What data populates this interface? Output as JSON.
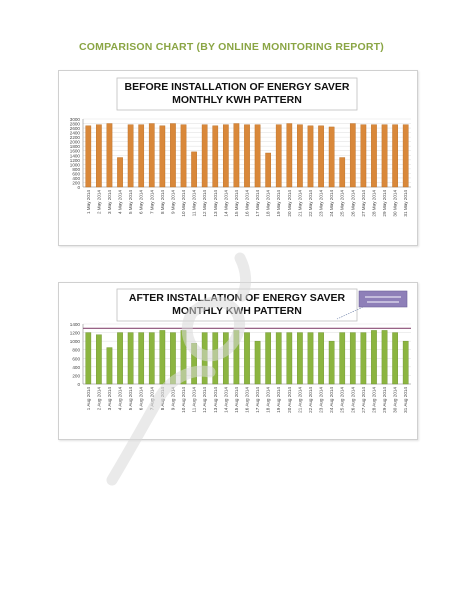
{
  "page": {
    "heading": "COMPARISON CHART  (BY ONLINE MONITORING REPORT)",
    "heading_color": "#8aa544"
  },
  "chart_data": [
    {
      "type": "bar",
      "title": "BEFORE INSTALLATION  OF ENERGY SAVER",
      "subtitle": "MONTHLY KWH PATTERN",
      "bar_color": "#d9883a",
      "bar_edge_color": "#b76b22",
      "grid": true,
      "ylim": [
        0,
        3000
      ],
      "yticks": [
        "0",
        "200",
        "400",
        "600",
        "800",
        "1000",
        "1200",
        "1400",
        "1600",
        "1800",
        "2000",
        "2200",
        "2400",
        "2600",
        "2800",
        "3000"
      ],
      "categories": [
        "1 May 2014",
        "2 May 2014",
        "3 May 2014",
        "4 May 2014",
        "5 May 2014",
        "6 May 2014",
        "7 May 2014",
        "8 May 2014",
        "9 May 2014",
        "10 May 2014",
        "11 May 2014",
        "12 May 2014",
        "13 May 2014",
        "14 May 2014",
        "15 May 2014",
        "16 May 2014",
        "17 May 2014",
        "18 May 2014",
        "19 May 2014",
        "20 May 2014",
        "21 May 2014",
        "22 May 2014",
        "23 May 2014",
        "24 May 2014",
        "25 May 2014",
        "26 May 2014",
        "27 May 2014",
        "28 May 2014",
        "29 May 2014",
        "30 May 2014",
        "31 May 2014"
      ],
      "values": [
        2700,
        2750,
        2800,
        1300,
        2750,
        2750,
        2800,
        2700,
        2800,
        2750,
        1550,
        2750,
        2700,
        2750,
        2800,
        2750,
        2750,
        1500,
        2750,
        2800,
        2750,
        2700,
        2700,
        2650,
        1300,
        2800,
        2750,
        2750,
        2750,
        2750,
        2750
      ]
    },
    {
      "type": "bar",
      "title": "AFTER  INSTALLATION  OF ENERGY SAVER",
      "subtitle": "MONTHLY KWH PATTERN",
      "bar_color": "#8cb540",
      "bar_edge_color": "#6a8f2b",
      "grid": true,
      "ylim": [
        0,
        1400
      ],
      "yticks": [
        "0",
        "200",
        "400",
        "600",
        "800",
        "1000",
        "1200",
        "1400"
      ],
      "reference_line_color": "#8a4d74",
      "reference_value": 1300,
      "callout_color": "#8e7fb8",
      "categories": [
        "1 Aug 2014",
        "2 Aug 2014",
        "3 Aug 2014",
        "4 Aug 2014",
        "5 Aug 2014",
        "6 Aug 2014",
        "7 Aug 2014",
        "8 Aug 2014",
        "9 Aug 2014",
        "10 Aug 2014",
        "11 Aug 2014",
        "12 Aug 2014",
        "13 Aug 2014",
        "14 Aug 2014",
        "15 Aug 2014",
        "16 Aug 2014",
        "17 Aug 2014",
        "18 Aug 2014",
        "19 Aug 2014",
        "20 Aug 2014",
        "21 Aug 2014",
        "22 Aug 2014",
        "23 Aug 2014",
        "24 Aug 2014",
        "25 Aug 2014",
        "26 Aug 2014",
        "27 Aug 2014",
        "28 Aug 2014",
        "29 Aug 2014",
        "30 Aug 2014",
        "31 Aug 2014"
      ],
      "values": [
        1200,
        1150,
        850,
        1200,
        1200,
        1200,
        1200,
        1250,
        1200,
        1250,
        950,
        1200,
        1200,
        1200,
        1250,
        1200,
        1000,
        1200,
        1200,
        1200,
        1200,
        1200,
        1200,
        1000,
        1200,
        1200,
        1200,
        1250,
        1250,
        1200,
        1000
      ]
    }
  ],
  "watermark": {
    "color": "#d9d9d9"
  }
}
